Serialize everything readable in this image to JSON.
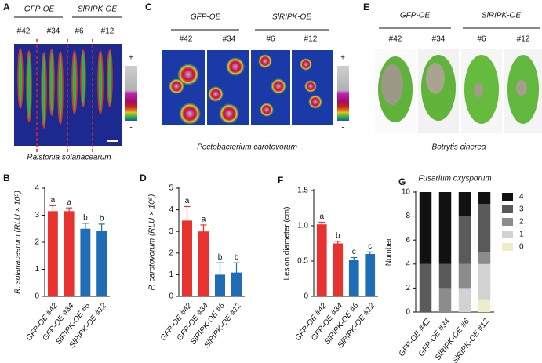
{
  "panels": [
    {
      "letter": "A",
      "groups": [
        "GFP-OE",
        "SlRIPK-OE"
      ],
      "lines": [
        "#42",
        "#34",
        "#6",
        "#12"
      ],
      "pathogen": "Ralstonia solanacearum",
      "scale": [
        "+",
        "-"
      ]
    },
    {
      "letter": "C",
      "groups": [
        "GFP-OE",
        "SlRIPK-OE"
      ],
      "lines": [
        "#42",
        "#34",
        "#6",
        "#12"
      ],
      "pathogen": "Pectobacterium carotovorum",
      "scale": [
        "+",
        "-"
      ]
    },
    {
      "letter": "E",
      "groups": [
        "GFP-OE",
        "SlRIPK-OE"
      ],
      "lines": [
        "#42",
        "#34",
        "#6",
        "#12"
      ],
      "pathogen": "Botrytis cinerea"
    }
  ],
  "chart_data": [
    {
      "type": "bar",
      "panel": "B",
      "ylabel": "R. solanacearum (RLU × 10⁵)",
      "categories": [
        "GFP-OE #42",
        "GFP-OE #34",
        "SlRIPK-OE #6",
        "SlRIPK-OE #12"
      ],
      "values": [
        3.15,
        3.15,
        2.5,
        2.42
      ],
      "errors": [
        0.2,
        0.12,
        0.2,
        0.25
      ],
      "letters": [
        "a",
        "a",
        "b",
        "b"
      ],
      "colors": [
        "#e8322f",
        "#e8322f",
        "#1f6db4",
        "#1f6db4"
      ],
      "ylim": [
        0,
        4
      ],
      "yticks": [
        0,
        1,
        2,
        3,
        4
      ]
    },
    {
      "type": "bar",
      "panel": "D",
      "ylabel": "P. carotovorum (RLU × 10⁵)",
      "categories": [
        "GFP-OE #42",
        "GFP-OE #34",
        "SlRIPK-OE #6",
        "SlRIPK-OE #12"
      ],
      "values": [
        3.5,
        3.0,
        1.0,
        1.1
      ],
      "errors": [
        0.65,
        0.3,
        0.55,
        0.45
      ],
      "letters": [
        "a",
        "a",
        "b",
        "b"
      ],
      "colors": [
        "#e8322f",
        "#e8322f",
        "#1f6db4",
        "#1f6db4"
      ],
      "ylim": [
        0,
        5
      ],
      "yticks": [
        0,
        1,
        2,
        3,
        4,
        5
      ]
    },
    {
      "type": "bar",
      "panel": "F",
      "ylabel": "Lesion diameter (cm)",
      "categories": [
        "GFP-OE #42",
        "GFP-OE #34",
        "SlRIPK-OE #6",
        "SlRIPK-OE #12"
      ],
      "values": [
        1.02,
        0.75,
        0.52,
        0.6
      ],
      "errors": [
        0.03,
        0.03,
        0.03,
        0.03
      ],
      "letters": [
        "a",
        "b",
        "c",
        "c"
      ],
      "colors": [
        "#e8322f",
        "#e8322f",
        "#1f6db4",
        "#1f6db4"
      ],
      "ylim": [
        0,
        1.5
      ],
      "yticks": [
        0,
        0.5,
        {
          "value": 1,
          "label": "1.0"
        },
        1.5
      ]
    },
    {
      "type": "stacked_bar",
      "panel": "G",
      "title": "Fusarium oxysporum",
      "ylabel": "Number",
      "categories": [
        "GFP-OE #42",
        "GFP-OE #34",
        "SlRIPK-OE #6",
        "SlRIPK-OE #12"
      ],
      "series": [
        {
          "name": "0",
          "color": "#eeeccb",
          "values": [
            0,
            0,
            0,
            1
          ]
        },
        {
          "name": "1",
          "color": "#d2d2d2",
          "values": [
            0,
            0,
            2,
            3
          ]
        },
        {
          "name": "2",
          "color": "#8c8c8c",
          "values": [
            0,
            2,
            2,
            1
          ]
        },
        {
          "name": "3",
          "color": "#5a5a5a",
          "values": [
            4,
            2,
            4,
            4
          ]
        },
        {
          "name": "4",
          "color": "#111111",
          "values": [
            6,
            6,
            2,
            1
          ]
        }
      ],
      "ylim": [
        0,
        10
      ],
      "yticks": [
        0,
        2,
        4,
        6,
        8,
        10
      ]
    }
  ]
}
